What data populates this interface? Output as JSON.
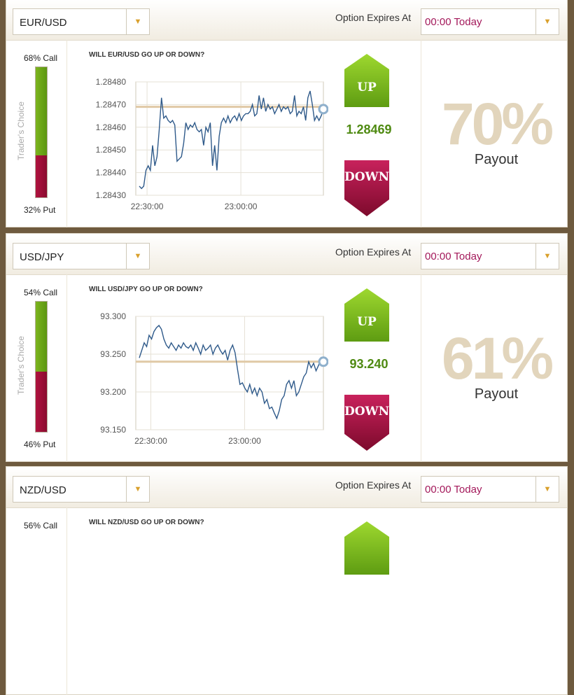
{
  "expires_label": "Option Expires At",
  "traders_choice": "Trader's Choice",
  "up_label": "UP",
  "down_label": "DOWN",
  "payout_label": "Payout",
  "colors": {
    "accent": "#d9a02c",
    "expiry_text": "#a3185a",
    "call": "#6aa516",
    "put": "#9c0f38",
    "price": "#4f8a12",
    "line": "#2f5a8a",
    "ref": "#e0c9a6"
  },
  "panels": [
    {
      "pair": "EUR/USD",
      "expiry": "00:00 Today",
      "call": "68% Call",
      "put": "32% Put",
      "call_fraction": 0.68,
      "question": "WILL EUR/USD GO UP OR DOWN?",
      "price": "1.28469",
      "payout": "70%",
      "chart_data": {
        "type": "line",
        "ylim": [
          1.2843,
          1.2848
        ],
        "yticks": [
          "1.28480",
          "1.28470",
          "1.28460",
          "1.28450",
          "1.28440",
          "1.28430"
        ],
        "xticks": [
          {
            "label": "22:30:00",
            "t": 0.06
          },
          {
            "label": "23:00:00",
            "t": 0.56
          }
        ],
        "reference": 1.28469,
        "values": [
          1.28434,
          1.28433,
          1.28434,
          1.28441,
          1.28443,
          1.28441,
          1.28452,
          1.28443,
          1.28447,
          1.28459,
          1.28473,
          1.28464,
          1.28465,
          1.28463,
          1.28462,
          1.28463,
          1.28461,
          1.28445,
          1.28446,
          1.28447,
          1.28453,
          1.28462,
          1.28459,
          1.28461,
          1.2846,
          1.28462,
          1.28459,
          1.28458,
          1.28459,
          1.28452,
          1.2846,
          1.28458,
          1.28462,
          1.28443,
          1.28452,
          1.28441,
          1.28456,
          1.28462,
          1.28464,
          1.28462,
          1.28465,
          1.28462,
          1.28464,
          1.28465,
          1.28463,
          1.28466,
          1.28463,
          1.28465,
          1.28466,
          1.28466,
          1.28467,
          1.2847,
          1.28465,
          1.28466,
          1.28474,
          1.28468,
          1.28473,
          1.28467,
          1.2847,
          1.28468,
          1.28469,
          1.28466,
          1.28468,
          1.2847,
          1.28467,
          1.28469,
          1.28468,
          1.28469,
          1.28466,
          1.28467,
          1.28474,
          1.28465,
          1.28467,
          1.28466,
          1.28469,
          1.28463,
          1.28473,
          1.28476,
          1.2847,
          1.28463,
          1.28465,
          1.28463,
          1.28465,
          1.28468
        ]
      }
    },
    {
      "pair": "USD/JPY",
      "expiry": "00:00 Today",
      "call": "54% Call",
      "put": "46% Put",
      "call_fraction": 0.54,
      "question": "WILL USD/JPY GO UP OR DOWN?",
      "price": "93.240",
      "payout": "61%",
      "chart_data": {
        "type": "line",
        "ylim": [
          93.15,
          93.3
        ],
        "yticks": [
          "93.300",
          "93.250",
          "93.200",
          "93.150"
        ],
        "xticks": [
          {
            "label": "22:30:00",
            "t": 0.08
          },
          {
            "label": "23:00:00",
            "t": 0.58
          }
        ],
        "reference": 93.24,
        "values": [
          93.245,
          93.255,
          93.265,
          93.26,
          93.275,
          93.27,
          93.28,
          93.285,
          93.288,
          93.283,
          93.27,
          93.262,
          93.258,
          93.265,
          93.26,
          93.255,
          93.262,
          93.258,
          93.265,
          93.26,
          93.258,
          93.262,
          93.255,
          93.265,
          93.258,
          93.25,
          93.262,
          93.255,
          93.258,
          93.262,
          93.25,
          93.258,
          93.262,
          93.255,
          93.25,
          93.255,
          93.242,
          93.255,
          93.262,
          93.252,
          93.23,
          93.21,
          93.212,
          93.205,
          93.2,
          93.21,
          93.198,
          93.205,
          93.195,
          93.205,
          93.2,
          93.185,
          93.19,
          93.178,
          93.18,
          93.172,
          93.165,
          93.175,
          93.19,
          93.195,
          93.21,
          93.215,
          93.205,
          93.215,
          93.195,
          93.2,
          93.21,
          93.22,
          93.225,
          93.24,
          93.232,
          93.238,
          93.228,
          93.235,
          93.245,
          93.24
        ]
      }
    },
    {
      "pair": "NZD/USD",
      "expiry": "00:00 Today",
      "call": "56% Call",
      "put": "",
      "call_fraction": 0.56,
      "question": "WILL NZD/USD GO UP OR DOWN?",
      "price": "",
      "payout": "",
      "chart_data": null
    }
  ]
}
